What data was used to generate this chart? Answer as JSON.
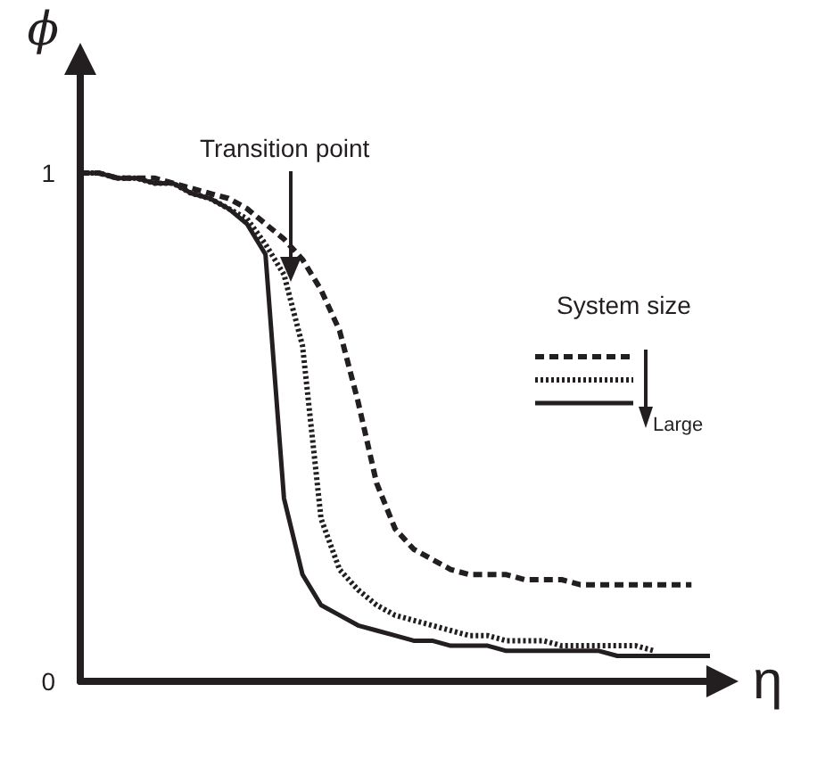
{
  "chart_data": {
    "type": "line",
    "xlabel": "η",
    "ylabel": "ϕ",
    "categories": [
      null,
      null,
      null,
      null,
      null,
      null,
      null,
      null,
      null,
      null,
      null,
      null,
      null,
      null,
      null,
      null,
      null,
      null,
      null,
      null,
      null,
      null,
      null,
      null,
      null,
      null,
      null,
      null,
      null,
      null,
      null,
      null,
      null,
      null,
      null
    ],
    "ylim": [
      0,
      1.2
    ],
    "yticks": [
      0,
      1
    ],
    "grid": false,
    "legend_title": "System size",
    "marker": "none",
    "annotations": [
      "Transition point",
      "Large"
    ],
    "series": [
      {
        "color": "#231f20",
        "line_style": "dashed",
        "values": [
          1.0,
          1.0,
          0.99,
          0.99,
          0.99,
          0.98,
          0.97,
          0.96,
          0.95,
          0.93,
          0.9,
          0.87,
          0.83,
          0.77,
          0.69,
          0.55,
          0.39,
          0.3,
          0.26,
          0.24,
          0.22,
          0.21,
          0.21,
          0.21,
          0.2,
          0.2,
          0.2,
          0.19,
          0.19,
          0.19,
          0.19,
          0.19,
          0.19,
          0.19,
          null
        ]
      },
      {
        "color": "#231f20",
        "line_style": "dotted",
        "values": [
          1.0,
          1.0,
          0.99,
          0.99,
          0.98,
          0.98,
          0.96,
          0.95,
          0.93,
          0.91,
          0.86,
          0.8,
          0.66,
          0.32,
          0.22,
          0.18,
          0.15,
          0.13,
          0.12,
          0.11,
          0.1,
          0.09,
          0.09,
          0.08,
          0.08,
          0.08,
          0.07,
          0.07,
          0.07,
          0.07,
          0.07,
          0.06,
          null,
          null,
          null
        ]
      },
      {
        "color": "#231f20",
        "line_style": "solid",
        "values": [
          1.0,
          1.0,
          0.99,
          0.99,
          0.98,
          0.98,
          0.96,
          0.95,
          0.93,
          0.9,
          0.84,
          0.36,
          0.21,
          0.15,
          0.13,
          0.11,
          0.1,
          0.09,
          0.08,
          0.08,
          0.07,
          0.07,
          0.07,
          0.06,
          0.06,
          0.06,
          0.06,
          0.06,
          0.06,
          0.05,
          0.05,
          0.05,
          0.05,
          0.05,
          0.05
        ]
      }
    ]
  }
}
